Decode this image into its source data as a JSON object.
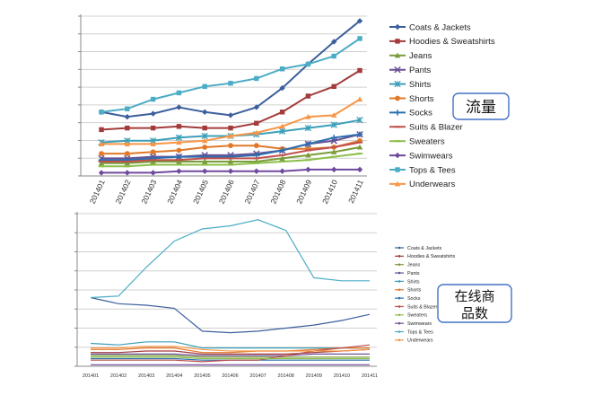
{
  "charts": [
    {
      "annotation": "流量",
      "chart_data": {
        "type": "line",
        "title": "",
        "xlabel": "",
        "ylabel": "",
        "grid": true,
        "legend": "right",
        "categories": [
          "201401",
          "201402",
          "201403",
          "201404",
          "201405",
          "201406",
          "201407",
          "201408",
          "201409",
          "201410",
          "201411"
        ],
        "ylim": [
          0,
          100
        ],
        "series": [
          {
            "name": "Coats & Jackets",
            "color": "#3d5f9c",
            "marker": "diamond",
            "values": [
              40,
              37,
              39,
              43,
              40,
              38,
              43,
              55,
              70,
              84,
              97
            ]
          },
          {
            "name": "Hoodies & Sweatshirts",
            "color": "#a33b3b",
            "marker": "square",
            "values": [
              29,
              30,
              30,
              31,
              30,
              30,
              33,
              40,
              50,
              56,
              66
            ]
          },
          {
            "name": "Jeans",
            "color": "#7a9b3a",
            "marker": "triangle",
            "values": [
              8,
              8,
              9,
              9,
              9,
              9,
              9,
              11,
              13,
              15,
              18
            ]
          },
          {
            "name": "Pants",
            "color": "#6a4f94",
            "marker": "x",
            "values": [
              11,
              11,
              12,
              12,
              13,
              13,
              14,
              16,
              20,
              22,
              26
            ]
          },
          {
            "name": "Shirts",
            "color": "#3c9fb8",
            "marker": "star",
            "values": [
              21,
              22,
              22,
              24,
              25,
              25,
              26,
              28,
              30,
              32,
              35
            ]
          },
          {
            "name": "Shorts",
            "color": "#e0782a",
            "marker": "circle",
            "values": [
              14,
              14,
              15,
              16,
              18,
              19,
              19,
              17,
              17,
              18,
              22
            ]
          },
          {
            "name": "Socks",
            "color": "#2a6fb0",
            "marker": "plus",
            "values": [
              10,
              10,
              11,
              12,
              12,
              12,
              13,
              16,
              20,
              24,
              26
            ]
          },
          {
            "name": "Suits & Blazer",
            "color": "#c0504d",
            "marker": "dash",
            "values": [
              9,
              9,
              10,
              10,
              11,
              11,
              11,
              13,
              16,
              18,
              21
            ]
          },
          {
            "name": "Sweaters",
            "color": "#8cbf4a",
            "marker": "dash",
            "values": [
              6,
              6,
              7,
              7,
              7,
              7,
              8,
              9,
              10,
              12,
              14
            ]
          },
          {
            "name": "Swimwears",
            "color": "#6f4a9e",
            "marker": "diamond",
            "values": [
              2,
              2,
              2,
              3,
              3,
              3,
              3,
              3,
              4,
              4,
              4
            ]
          },
          {
            "name": "Tops & Tees",
            "color": "#4bacc6",
            "marker": "square",
            "values": [
              40,
              42,
              48,
              52,
              56,
              58,
              61,
              67,
              70,
              75,
              86
            ]
          },
          {
            "name": "Underwears",
            "color": "#f79646",
            "marker": "triangle",
            "values": [
              20,
              20,
              20,
              21,
              22,
              25,
              27,
              31,
              37,
              38,
              48
            ]
          }
        ]
      }
    },
    {
      "annotation_line1": "在线商",
      "annotation_line2": "品数",
      "chart_data": {
        "type": "line",
        "title": "",
        "xlabel": "",
        "ylabel": "",
        "grid": true,
        "legend": "right",
        "categories": [
          "201401",
          "201402",
          "201403",
          "201404",
          "201405",
          "201406",
          "201407",
          "201408",
          "201409",
          "201410",
          "201411"
        ],
        "ylim": [
          0,
          100
        ],
        "series": [
          {
            "name": "Coats & Jackets",
            "color": "#3d5f9c",
            "values": [
              45,
              41,
              40,
              38,
              23,
              22,
              23,
              25,
              27,
              30,
              34
            ]
          },
          {
            "name": "Hoodies & Sweatshirts",
            "color": "#a33b3b",
            "values": [
              9,
              9,
              10,
              10,
              8,
              8,
              8,
              8,
              9,
              10,
              11
            ]
          },
          {
            "name": "Jeans",
            "color": "#7a9b3a",
            "values": [
              7,
              7,
              7,
              7,
              6,
              6,
              6,
              6,
              6,
              6,
              6
            ]
          },
          {
            "name": "Pants",
            "color": "#6a4f94",
            "values": [
              8,
              8,
              8,
              8,
              7,
              7,
              7,
              7,
              8,
              8,
              8
            ]
          },
          {
            "name": "Shirts",
            "color": "#3c9fb8",
            "values": [
              15,
              14,
              16,
              16,
              12,
              12,
              12,
              12,
              12,
              12,
              12
            ]
          },
          {
            "name": "Shorts",
            "color": "#e0782a",
            "values": [
              11,
              11,
              12,
              12,
              9,
              9,
              10,
              10,
              11,
              12,
              12
            ]
          },
          {
            "name": "Socks",
            "color": "#2a6fb0",
            "values": [
              5,
              5,
              5,
              5,
              4,
              4,
              4,
              4,
              4,
              4,
              4
            ]
          },
          {
            "name": "Suits & Blazer",
            "color": "#c0504d",
            "values": [
              4,
              4,
              4,
              4,
              3,
              4,
              4,
              7,
              10,
              12,
              14
            ]
          },
          {
            "name": "Sweaters",
            "color": "#8cbf4a",
            "values": [
              6,
              6,
              6,
              6,
              5,
              5,
              5,
              5,
              5,
              5,
              5
            ]
          },
          {
            "name": "Swimwears",
            "color": "#6f4a9e",
            "values": [
              1,
              1,
              1,
              1,
              1,
              1,
              1,
              1,
              1,
              1,
              1
            ]
          },
          {
            "name": "Tops & Tees",
            "color": "#4bacc6",
            "values": [
              45,
              46,
              65,
              82,
              90,
              92,
              96,
              89,
              58,
              56,
              56
            ]
          },
          {
            "name": "Underwears",
            "color": "#f79646",
            "values": [
              12,
              12,
              13,
              13,
              11,
              10,
              10,
              10,
              10,
              10,
              11
            ]
          }
        ]
      }
    }
  ]
}
